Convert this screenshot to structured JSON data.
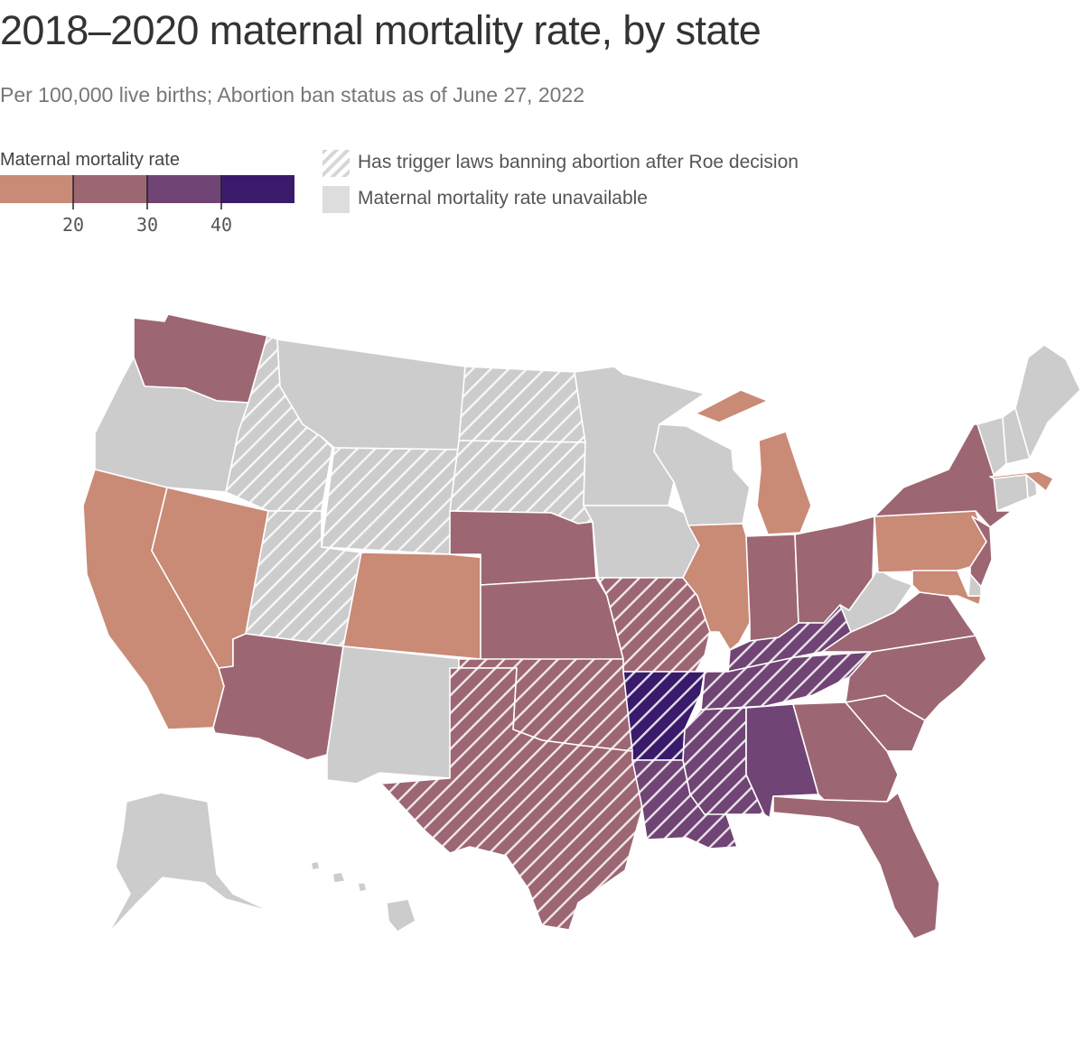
{
  "title": "2018–2020 maternal mortality rate, by state",
  "subtitle": "Per 100,000 live births; Abortion ban status as of June 27, 2022",
  "legend": {
    "title": "Maternal mortality rate",
    "ticks": [
      "20",
      "30",
      "40"
    ],
    "bins": [
      {
        "range": "< 20",
        "color": "#c98a76"
      },
      {
        "range": "20–30",
        "color": "#9d6673"
      },
      {
        "range": "30–40",
        "color": "#704474"
      },
      {
        "range": "40+",
        "color": "#3a1a6b"
      }
    ],
    "trigger_label": "Has trigger laws banning abortion after Roe decision",
    "unavailable_label": "Maternal mortality rate unavailable",
    "unavailable_color": "#cccccc"
  },
  "chart_data": {
    "type": "choropleth",
    "value_bins": {
      "low": "< 20",
      "mid": "20–30",
      "high": "30–40",
      "top": "40+",
      "na": "unavailable"
    },
    "states": [
      {
        "abbr": "WA",
        "bin": "mid",
        "trigger": false
      },
      {
        "abbr": "OR",
        "bin": "na",
        "trigger": false
      },
      {
        "abbr": "CA",
        "bin": "low",
        "trigger": false
      },
      {
        "abbr": "NV",
        "bin": "low",
        "trigger": false
      },
      {
        "abbr": "ID",
        "bin": "na",
        "trigger": true
      },
      {
        "abbr": "MT",
        "bin": "na",
        "trigger": false
      },
      {
        "abbr": "WY",
        "bin": "na",
        "trigger": true
      },
      {
        "abbr": "UT",
        "bin": "na",
        "trigger": true
      },
      {
        "abbr": "AZ",
        "bin": "mid",
        "trigger": false
      },
      {
        "abbr": "CO",
        "bin": "low",
        "trigger": false
      },
      {
        "abbr": "NM",
        "bin": "na",
        "trigger": false
      },
      {
        "abbr": "ND",
        "bin": "na",
        "trigger": true
      },
      {
        "abbr": "SD",
        "bin": "na",
        "trigger": true
      },
      {
        "abbr": "NE",
        "bin": "mid",
        "trigger": false
      },
      {
        "abbr": "KS",
        "bin": "mid",
        "trigger": false
      },
      {
        "abbr": "OK",
        "bin": "mid",
        "trigger": true
      },
      {
        "abbr": "TX",
        "bin": "mid",
        "trigger": true
      },
      {
        "abbr": "MN",
        "bin": "na",
        "trigger": false
      },
      {
        "abbr": "IA",
        "bin": "na",
        "trigger": false
      },
      {
        "abbr": "MO",
        "bin": "mid",
        "trigger": true
      },
      {
        "abbr": "AR",
        "bin": "top",
        "trigger": true
      },
      {
        "abbr": "LA",
        "bin": "high",
        "trigger": true
      },
      {
        "abbr": "WI",
        "bin": "na",
        "trigger": false
      },
      {
        "abbr": "IL",
        "bin": "low",
        "trigger": false
      },
      {
        "abbr": "MI",
        "bin": "low",
        "trigger": false
      },
      {
        "abbr": "IN",
        "bin": "mid",
        "trigger": false
      },
      {
        "abbr": "OH",
        "bin": "mid",
        "trigger": false
      },
      {
        "abbr": "KY",
        "bin": "high",
        "trigger": true
      },
      {
        "abbr": "TN",
        "bin": "high",
        "trigger": true
      },
      {
        "abbr": "MS",
        "bin": "high",
        "trigger": true
      },
      {
        "abbr": "AL",
        "bin": "high",
        "trigger": false
      },
      {
        "abbr": "GA",
        "bin": "mid",
        "trigger": false
      },
      {
        "abbr": "FL",
        "bin": "mid",
        "trigger": false
      },
      {
        "abbr": "SC",
        "bin": "mid",
        "trigger": false
      },
      {
        "abbr": "NC",
        "bin": "mid",
        "trigger": false
      },
      {
        "abbr": "VA",
        "bin": "mid",
        "trigger": false
      },
      {
        "abbr": "WV",
        "bin": "na",
        "trigger": false
      },
      {
        "abbr": "PA",
        "bin": "low",
        "trigger": false
      },
      {
        "abbr": "NY",
        "bin": "mid",
        "trigger": false
      },
      {
        "abbr": "NJ",
        "bin": "mid",
        "trigger": false
      },
      {
        "abbr": "MD",
        "bin": "low",
        "trigger": false
      },
      {
        "abbr": "DE",
        "bin": "na",
        "trigger": false
      },
      {
        "abbr": "CT",
        "bin": "na",
        "trigger": false
      },
      {
        "abbr": "RI",
        "bin": "na",
        "trigger": false
      },
      {
        "abbr": "MA",
        "bin": "low",
        "trigger": false
      },
      {
        "abbr": "VT",
        "bin": "na",
        "trigger": false
      },
      {
        "abbr": "NH",
        "bin": "na",
        "trigger": false
      },
      {
        "abbr": "ME",
        "bin": "na",
        "trigger": false
      },
      {
        "abbr": "AK",
        "bin": "na",
        "trigger": false
      },
      {
        "abbr": "HI",
        "bin": "na",
        "trigger": false
      }
    ]
  }
}
